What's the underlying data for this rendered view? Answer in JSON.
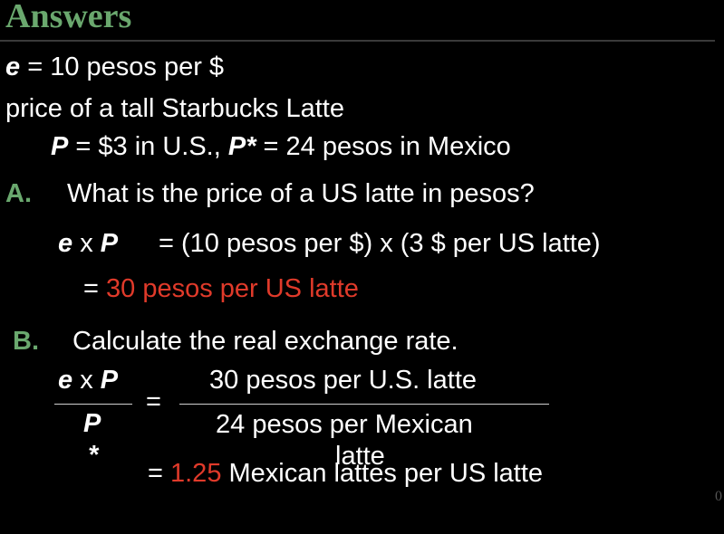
{
  "slide": {
    "title": "Answers",
    "page_number": "0"
  },
  "given": {
    "line1_var": "e",
    "line1_text": " = 10 pesos per $",
    "line2": "price of a tall Starbucks Latte",
    "line3_p": "P",
    "line3_text1": " = $3 in U.S.,  ",
    "line3_pstar": "P*",
    "line3_text2": " = 24 pesos in Mexico"
  },
  "question_a": {
    "label": "A.",
    "text": "What is the price of a US latte in pesos?",
    "eq_e": "e",
    "eq_x": " x ",
    "eq_p": "P",
    "eq_rhs": "= (10 pesos per $)  x  (3 $ per US latte)",
    "result_eq": "= ",
    "result_value": "30 pesos per US latte"
  },
  "question_b": {
    "label": "B.",
    "text": "Calculate the real exchange rate.",
    "num_e": "e",
    "num_x": " x ",
    "num_p": "P",
    "den_p": "P",
    "den_star": "*",
    "equals1": "=",
    "frac_num": "30 pesos per U.S. latte",
    "frac_den_line1": "24 pesos per Mexican",
    "frac_den_line2": "latte",
    "result_eq": "=  ",
    "result_value": "1.25",
    "result_text": " Mexican lattes per US latte"
  }
}
